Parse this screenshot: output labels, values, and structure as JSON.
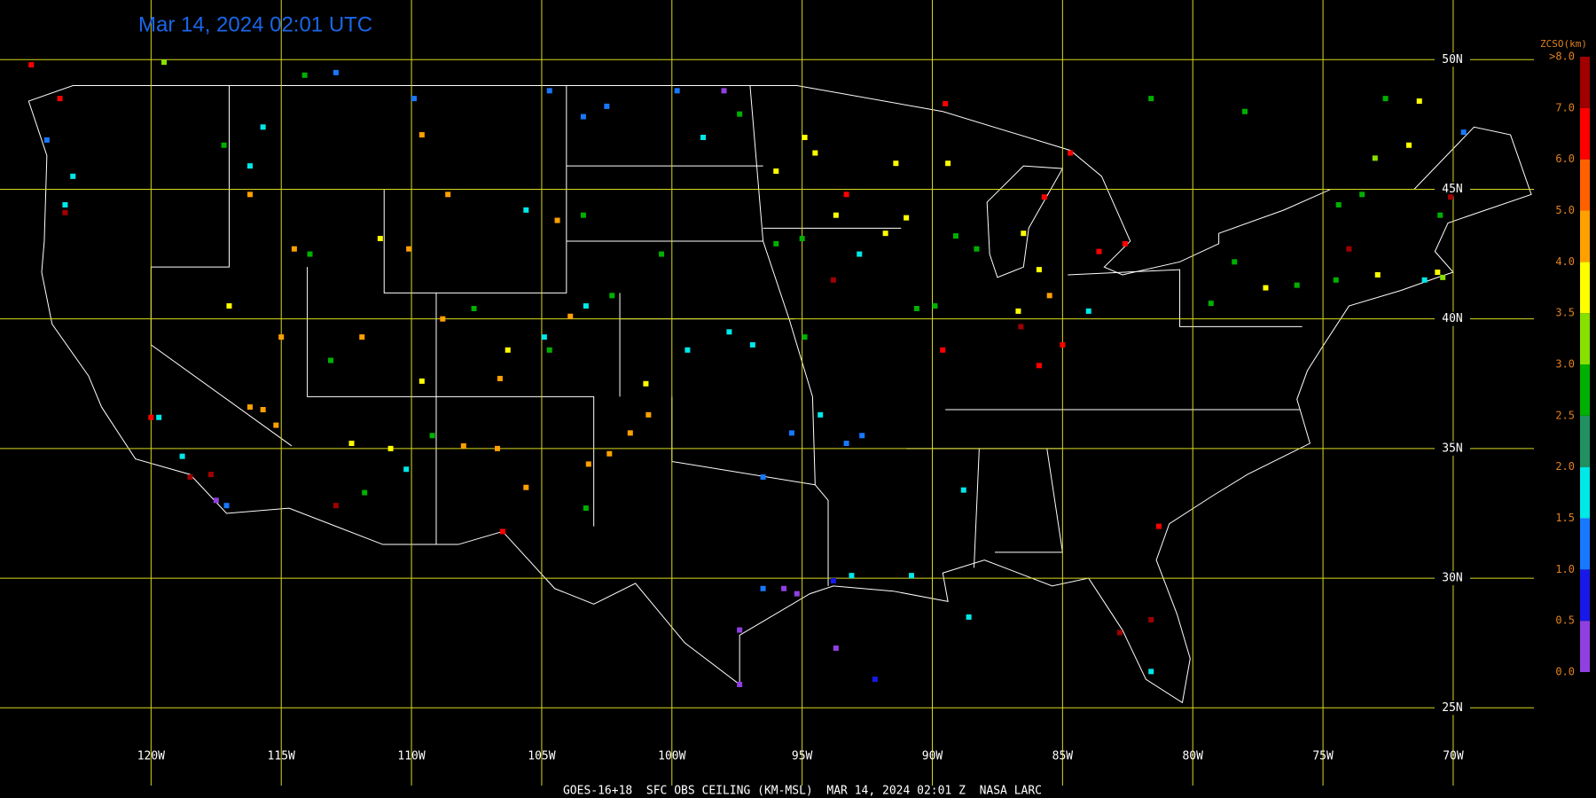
{
  "title": "Mar 14, 2024 02:01 UTC",
  "caption": "GOES-16+18  SFC OBS CEILING (KM-MSL)  MAR 14, 2024 02:01 Z  NASA LARC",
  "map": {
    "lonlim": [
      -125.8,
      -66.9
    ],
    "latlim": [
      22.0,
      52.3
    ],
    "lon_ticks": [
      {
        "value": -120,
        "label": "120W"
      },
      {
        "value": -115,
        "label": "115W"
      },
      {
        "value": -110,
        "label": "110W"
      },
      {
        "value": -105,
        "label": "105W"
      },
      {
        "value": -100,
        "label": "100W"
      },
      {
        "value": -95,
        "label": "95W"
      },
      {
        "value": -90,
        "label": "90W"
      },
      {
        "value": -85,
        "label": "85W"
      },
      {
        "value": -80,
        "label": "80W"
      },
      {
        "value": -75,
        "label": "75W"
      },
      {
        "value": -70,
        "label": "70W"
      }
    ],
    "lat_ticks": [
      {
        "value": 50,
        "label": "50N"
      },
      {
        "value": 45,
        "label": "45N"
      },
      {
        "value": 40,
        "label": "40N"
      },
      {
        "value": 35,
        "label": "35N"
      },
      {
        "value": 30,
        "label": "30N"
      },
      {
        "value": 25,
        "label": "25N"
      }
    ],
    "grid_color": "#d8d820"
  },
  "legend": {
    "title": "ZCSO(km)",
    "ticks": [
      {
        "value": 0,
        "label": "0.0"
      },
      {
        "value": 0.5,
        "label": "0.5"
      },
      {
        "value": 1,
        "label": "1.0"
      },
      {
        "value": 1.5,
        "label": "1.5"
      },
      {
        "value": 2,
        "label": "2.0"
      },
      {
        "value": 2.5,
        "label": "2.5"
      },
      {
        "value": 3,
        "label": "3.0"
      },
      {
        "value": 3.5,
        "label": "3.5"
      },
      {
        "value": 4,
        "label": "4.0"
      },
      {
        "value": 5,
        "label": "5.0"
      },
      {
        "value": 6,
        "label": "6.0"
      },
      {
        "value": 7,
        "label": "7.0"
      },
      {
        "value": 8,
        "label": ">8.0"
      }
    ],
    "colors": [
      "#9040e0",
      "#1818e8",
      "#1878ff",
      "#00e8e8",
      "#209060",
      "#00b000",
      "#88e000",
      "#ffff00",
      "#ffa000",
      "#ff6000",
      "#ff0000",
      "#a00000"
    ]
  },
  "stations": [
    {
      "lon": -95.7,
      "lat": 29.6,
      "ceiling": 0.3
    },
    {
      "lon": -97.4,
      "lat": 28.0,
      "ceiling": 0.3
    },
    {
      "lon": -93.7,
      "lat": 27.3,
      "ceiling": 0.3
    },
    {
      "lon": -92.2,
      "lat": 26.1,
      "ceiling": 0.8
    },
    {
      "lon": -96.5,
      "lat": 29.6,
      "ceiling": 1.2
    },
    {
      "lon": -95.2,
      "lat": 29.4,
      "ceiling": 0.3
    },
    {
      "lon": -97.4,
      "lat": 25.9,
      "ceiling": 0.3
    },
    {
      "lon": -93.8,
      "lat": 29.9,
      "ceiling": 0.8
    },
    {
      "lon": -93.1,
      "lat": 30.1,
      "ceiling": 1.8
    },
    {
      "lon": -90.8,
      "lat": 30.1,
      "ceiling": 1.8
    },
    {
      "lon": -88.6,
      "lat": 28.5,
      "ceiling": 1.8
    },
    {
      "lon": -81.6,
      "lat": 26.4,
      "ceiling": 1.8
    },
    {
      "lon": -81.6,
      "lat": 28.4,
      "ceiling": 7.5
    },
    {
      "lon": -82.8,
      "lat": 27.9,
      "ceiling": 7.5
    },
    {
      "lon": -81.3,
      "lat": 32.0,
      "ceiling": 6.8
    },
    {
      "lon": -88.8,
      "lat": 33.4,
      "ceiling": 1.8
    },
    {
      "lon": -94.3,
      "lat": 36.3,
      "ceiling": 1.8
    },
    {
      "lon": -95.4,
      "lat": 35.6,
      "ceiling": 1.2
    },
    {
      "lon": -96.5,
      "lat": 33.9,
      "ceiling": 1.2
    },
    {
      "lon": -93.3,
      "lat": 35.2,
      "ceiling": 1.2
    },
    {
      "lon": -92.7,
      "lat": 35.5,
      "ceiling": 1.2
    },
    {
      "lon": -94.9,
      "lat": 47.0,
      "ceiling": 3.8
    },
    {
      "lon": -94.5,
      "lat": 46.4,
      "ceiling": 3.8
    },
    {
      "lon": -93.3,
      "lat": 44.8,
      "ceiling": 6.8
    },
    {
      "lon": -96.0,
      "lat": 45.7,
      "ceiling": 3.8
    },
    {
      "lon": -93.7,
      "lat": 44.0,
      "ceiling": 3.8
    },
    {
      "lon": -96.0,
      "lat": 42.9,
      "ceiling": 2.8
    },
    {
      "lon": -95.0,
      "lat": 43.1,
      "ceiling": 2.8
    },
    {
      "lon": -92.8,
      "lat": 42.5,
      "ceiling": 1.8
    },
    {
      "lon": -93.8,
      "lat": 41.5,
      "ceiling": 7.5
    },
    {
      "lon": -91.8,
      "lat": 43.3,
      "ceiling": 3.8
    },
    {
      "lon": -91.0,
      "lat": 43.9,
      "ceiling": 3.8
    },
    {
      "lon": -91.4,
      "lat": 46.0,
      "ceiling": 3.8
    },
    {
      "lon": -89.4,
      "lat": 46.0,
      "ceiling": 3.8
    },
    {
      "lon": -89.1,
      "lat": 43.2,
      "ceiling": 2.8
    },
    {
      "lon": -88.3,
      "lat": 42.7,
      "ceiling": 2.8
    },
    {
      "lon": -86.5,
      "lat": 43.3,
      "ceiling": 3.8
    },
    {
      "lon": -85.9,
      "lat": 41.9,
      "ceiling": 3.8
    },
    {
      "lon": -85.5,
      "lat": 40.9,
      "ceiling": 4.5
    },
    {
      "lon": -86.7,
      "lat": 40.3,
      "ceiling": 3.8
    },
    {
      "lon": -86.6,
      "lat": 39.7,
      "ceiling": 7.5
    },
    {
      "lon": -85.0,
      "lat": 39.0,
      "ceiling": 6.8
    },
    {
      "lon": -85.9,
      "lat": 38.2,
      "ceiling": 6.8
    },
    {
      "lon": -89.6,
      "lat": 38.8,
      "ceiling": 6.8
    },
    {
      "lon": -90.6,
      "lat": 40.4,
      "ceiling": 2.8
    },
    {
      "lon": -89.9,
      "lat": 40.5,
      "ceiling": 2.8
    },
    {
      "lon": -94.9,
      "lat": 39.3,
      "ceiling": 2.8
    },
    {
      "lon": -96.9,
      "lat": 39.0,
      "ceiling": 1.8
    },
    {
      "lon": -97.8,
      "lat": 39.5,
      "ceiling": 1.8
    },
    {
      "lon": -99.4,
      "lat": 38.8,
      "ceiling": 1.8
    },
    {
      "lon": -101.0,
      "lat": 37.5,
      "ceiling": 3.8
    },
    {
      "lon": -100.9,
      "lat": 36.3,
      "ceiling": 4.5
    },
    {
      "lon": -101.6,
      "lat": 35.6,
      "ceiling": 4.5
    },
    {
      "lon": -102.4,
      "lat": 34.8,
      "ceiling": 4.5
    },
    {
      "lon": -103.2,
      "lat": 34.4,
      "ceiling": 4.5
    },
    {
      "lon": -103.3,
      "lat": 32.7,
      "ceiling": 2.8
    },
    {
      "lon": -105.6,
      "lat": 33.5,
      "ceiling": 4.5
    },
    {
      "lon": -106.5,
      "lat": 31.8,
      "ceiling": 6.8
    },
    {
      "lon": -106.7,
      "lat": 35.0,
      "ceiling": 4.5
    },
    {
      "lon": -104.9,
      "lat": 39.3,
      "ceiling": 1.8
    },
    {
      "lon": -104.7,
      "lat": 38.8,
      "ceiling": 2.8
    },
    {
      "lon": -106.3,
      "lat": 38.8,
      "ceiling": 3.8
    },
    {
      "lon": -106.6,
      "lat": 37.7,
      "ceiling": 4.5
    },
    {
      "lon": -107.6,
      "lat": 40.4,
      "ceiling": 2.8
    },
    {
      "lon": -108.8,
      "lat": 40.0,
      "ceiling": 4.5
    },
    {
      "lon": -109.6,
      "lat": 37.6,
      "ceiling": 3.8
    },
    {
      "lon": -111.9,
      "lat": 39.3,
      "ceiling": 4.5
    },
    {
      "lon": -113.1,
      "lat": 38.4,
      "ceiling": 2.8
    },
    {
      "lon": -112.3,
      "lat": 35.2,
      "ceiling": 3.8
    },
    {
      "lon": -110.8,
      "lat": 35.0,
      "ceiling": 3.8
    },
    {
      "lon": -110.2,
      "lat": 34.2,
      "ceiling": 1.8
    },
    {
      "lon": -111.8,
      "lat": 33.3,
      "ceiling": 2.8
    },
    {
      "lon": -112.9,
      "lat": 32.8,
      "ceiling": 7.5
    },
    {
      "lon": -109.2,
      "lat": 35.5,
      "ceiling": 2.8
    },
    {
      "lon": -108.0,
      "lat": 35.1,
      "ceiling": 4.5
    },
    {
      "lon": -120.0,
      "lat": 36.2,
      "ceiling": 6.8
    },
    {
      "lon": -119.7,
      "lat": 36.2,
      "ceiling": 1.8
    },
    {
      "lon": -118.8,
      "lat": 34.7,
      "ceiling": 1.8
    },
    {
      "lon": -117.5,
      "lat": 33.0,
      "ceiling": 0.3
    },
    {
      "lon": -117.1,
      "lat": 32.8,
      "ceiling": 1.2
    },
    {
      "lon": -117.7,
      "lat": 34.0,
      "ceiling": 7.5
    },
    {
      "lon": -118.5,
      "lat": 33.9,
      "ceiling": 7.5
    },
    {
      "lon": -116.2,
      "lat": 36.6,
      "ceiling": 4.5
    },
    {
      "lon": -115.7,
      "lat": 36.5,
      "ceiling": 4.5
    },
    {
      "lon": -115.2,
      "lat": 35.9,
      "ceiling": 4.5
    },
    {
      "lon": -115.0,
      "lat": 39.3,
      "ceiling": 4.5
    },
    {
      "lon": -117.0,
      "lat": 40.5,
      "ceiling": 3.8
    },
    {
      "lon": -123.3,
      "lat": 44.1,
      "ceiling": 7.5
    },
    {
      "lon": -123.0,
      "lat": 45.5,
      "ceiling": 1.8
    },
    {
      "lon": -123.3,
      "lat": 44.4,
      "ceiling": 1.8
    },
    {
      "lon": -124.0,
      "lat": 46.9,
      "ceiling": 1.2
    },
    {
      "lon": -124.6,
      "lat": 49.8,
      "ceiling": 6.8
    },
    {
      "lon": -123.5,
      "lat": 48.5,
      "ceiling": 6.8
    },
    {
      "lon": -119.5,
      "lat": 49.9,
      "ceiling": 3.2
    },
    {
      "lon": -116.2,
      "lat": 45.9,
      "ceiling": 1.8
    },
    {
      "lon": -116.2,
      "lat": 44.8,
      "ceiling": 4.5
    },
    {
      "lon": -115.7,
      "lat": 47.4,
      "ceiling": 1.8
    },
    {
      "lon": -117.2,
      "lat": 46.7,
      "ceiling": 2.8
    },
    {
      "lon": -114.1,
      "lat": 49.4,
      "ceiling": 2.8
    },
    {
      "lon": -112.9,
      "lat": 49.5,
      "ceiling": 1.2
    },
    {
      "lon": -109.9,
      "lat": 48.5,
      "ceiling": 1.2
    },
    {
      "lon": -109.6,
      "lat": 47.1,
      "ceiling": 4.5
    },
    {
      "lon": -114.5,
      "lat": 42.7,
      "ceiling": 4.5
    },
    {
      "lon": -113.9,
      "lat": 42.5,
      "ceiling": 2.8
    },
    {
      "lon": -111.2,
      "lat": 43.1,
      "ceiling": 3.8
    },
    {
      "lon": -110.1,
      "lat": 42.7,
      "ceiling": 4.5
    },
    {
      "lon": -108.6,
      "lat": 44.8,
      "ceiling": 4.5
    },
    {
      "lon": -105.6,
      "lat": 44.2,
      "ceiling": 1.8
    },
    {
      "lon": -104.4,
      "lat": 43.8,
      "ceiling": 4.5
    },
    {
      "lon": -103.4,
      "lat": 44.0,
      "ceiling": 2.8
    },
    {
      "lon": -104.7,
      "lat": 48.8,
      "ceiling": 1.2
    },
    {
      "lon": -103.4,
      "lat": 47.8,
      "ceiling": 1.2
    },
    {
      "lon": -102.5,
      "lat": 48.2,
      "ceiling": 1.2
    },
    {
      "lon": -99.8,
      "lat": 48.8,
      "ceiling": 1.2
    },
    {
      "lon": -98.8,
      "lat": 47.0,
      "ceiling": 1.8
    },
    {
      "lon": -98.0,
      "lat": 48.8,
      "ceiling": 0.3
    },
    {
      "lon": -97.4,
      "lat": 47.9,
      "ceiling": 2.8
    },
    {
      "lon": -100.4,
      "lat": 42.5,
      "ceiling": 2.8
    },
    {
      "lon": -102.3,
      "lat": 40.9,
      "ceiling": 2.8
    },
    {
      "lon": -103.3,
      "lat": 40.5,
      "ceiling": 1.8
    },
    {
      "lon": -103.9,
      "lat": 40.1,
      "ceiling": 4.5
    },
    {
      "lon": -89.5,
      "lat": 48.3,
      "ceiling": 6.8
    },
    {
      "lon": -84.7,
      "lat": 46.4,
      "ceiling": 6.8
    },
    {
      "lon": -85.7,
      "lat": 44.7,
      "ceiling": 6.8
    },
    {
      "lon": -83.6,
      "lat": 42.6,
      "ceiling": 6.8
    },
    {
      "lon": -82.6,
      "lat": 42.9,
      "ceiling": 6.8
    },
    {
      "lon": -84.0,
      "lat": 40.3,
      "ceiling": 1.8
    },
    {
      "lon": -81.6,
      "lat": 48.5,
      "ceiling": 2.8
    },
    {
      "lon": -78.0,
      "lat": 48.0,
      "ceiling": 2.8
    },
    {
      "lon": -79.3,
      "lat": 40.6,
      "ceiling": 2.8
    },
    {
      "lon": -77.2,
      "lat": 41.2,
      "ceiling": 3.8
    },
    {
      "lon": -76.0,
      "lat": 41.3,
      "ceiling": 2.8
    },
    {
      "lon": -74.5,
      "lat": 41.5,
      "ceiling": 2.8
    },
    {
      "lon": -74.0,
      "lat": 42.7,
      "ceiling": 7.5
    },
    {
      "lon": -72.9,
      "lat": 41.7,
      "ceiling": 3.8
    },
    {
      "lon": -71.1,
      "lat": 41.5,
      "ceiling": 1.8
    },
    {
      "lon": -70.6,
      "lat": 41.8,
      "ceiling": 3.8
    },
    {
      "lon": -70.4,
      "lat": 41.6,
      "ceiling": 3.2
    },
    {
      "lon": -71.3,
      "lat": 48.4,
      "ceiling": 3.8
    },
    {
      "lon": -72.6,
      "lat": 48.5,
      "ceiling": 2.8
    },
    {
      "lon": -71.7,
      "lat": 46.7,
      "ceiling": 3.8
    },
    {
      "lon": -73.0,
      "lat": 46.2,
      "ceiling": 3.2
    },
    {
      "lon": -69.6,
      "lat": 47.2,
      "ceiling": 1.2
    },
    {
      "lon": -70.1,
      "lat": 44.7,
      "ceiling": 7.5
    },
    {
      "lon": -70.5,
      "lat": 44.0,
      "ceiling": 2.8
    },
    {
      "lon": -73.5,
      "lat": 44.8,
      "ceiling": 2.8
    },
    {
      "lon": -74.4,
      "lat": 44.4,
      "ceiling": 2.8
    },
    {
      "lon": -78.4,
      "lat": 42.2,
      "ceiling": 2.8
    }
  ]
}
